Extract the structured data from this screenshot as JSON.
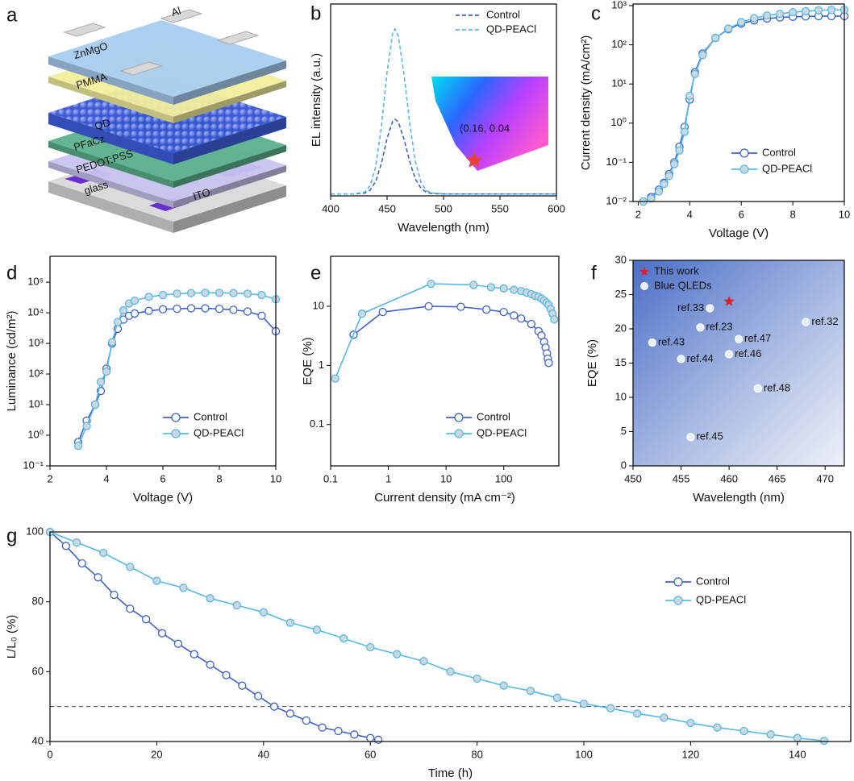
{
  "chart_data": [
    {
      "type": "diagram",
      "panel": "a",
      "layers": [
        "Al",
        "ZnMgO",
        "PMMA",
        "QD",
        "PFaCz",
        "PEDOT:PSS",
        "glass",
        "ITO"
      ]
    },
    {
      "type": "line",
      "panel": "b",
      "xlabel": "Wavelength (nm)",
      "ylabel": "EL intensity (a.u.)",
      "xlim": [
        400,
        600
      ],
      "xticks": [
        400,
        450,
        500,
        550,
        600
      ],
      "ylim": [
        0,
        1
      ],
      "line_style": "dashed",
      "legend": "upper right",
      "annotation": "(0.16, 0.04",
      "series": [
        {
          "name": "Control",
          "color": "#3d63c9",
          "x": [
            400,
            410,
            420,
            430,
            435,
            440,
            445,
            450,
            455,
            457,
            460,
            465,
            470,
            475,
            480,
            485,
            490,
            500,
            520,
            540,
            560,
            580,
            600
          ],
          "values": [
            0.01,
            0.01,
            0.01,
            0.014,
            0.03,
            0.076,
            0.17,
            0.3,
            0.39,
            0.4,
            0.385,
            0.295,
            0.18,
            0.088,
            0.04,
            0.018,
            0.012,
            0.01,
            0.01,
            0.01,
            0.01,
            0.01,
            0.01
          ]
        },
        {
          "name": "QD-PEACl",
          "color": "#56b9ea",
          "x": [
            400,
            410,
            420,
            430,
            435,
            440,
            445,
            450,
            455,
            457,
            460,
            465,
            470,
            475,
            480,
            485,
            490,
            500,
            520,
            540,
            560,
            580,
            600
          ],
          "values": [
            0.01,
            0.01,
            0.01,
            0.019,
            0.053,
            0.154,
            0.363,
            0.646,
            0.849,
            0.87,
            0.832,
            0.634,
            0.38,
            0.18,
            0.071,
            0.027,
            0.015,
            0.01,
            0.01,
            0.01,
            0.01,
            0.01,
            0.01
          ]
        }
      ]
    },
    {
      "type": "line",
      "panel": "c",
      "xlabel": "Voltage (V)",
      "ylabel": "Current density (mA/cm²)",
      "xlim": [
        1.8,
        10
      ],
      "xticks": [
        2,
        4,
        6,
        8,
        10
      ],
      "yscale": "log",
      "ylim": [
        0.01,
        1100
      ],
      "yticks": [
        {
          "value": 0.01,
          "label": "10⁻²"
        },
        {
          "value": 0.1,
          "label": "10⁻¹"
        },
        {
          "value": 1,
          "label": "10⁰"
        },
        {
          "value": 10,
          "label": "10¹"
        },
        {
          "value": 100,
          "label": "10²"
        },
        {
          "value": 1000,
          "label": "10³"
        }
      ],
      "legend": "lower right",
      "series": [
        {
          "name": "Control",
          "color": "#3d63c9",
          "marker": "circle",
          "marker_fill": "#ffffff",
          "x": [
            2.2,
            2.5,
            2.8,
            3.0,
            3.2,
            3.4,
            3.6,
            3.8,
            4.0,
            4.2,
            4.5,
            5,
            5.5,
            6,
            6.5,
            7,
            7.5,
            8,
            8.5,
            9,
            9.5,
            10
          ],
          "values": [
            0.01,
            0.013,
            0.02,
            0.03,
            0.05,
            0.1,
            0.25,
            0.8,
            4,
            20,
            60,
            150,
            250,
            350,
            420,
            470,
            500,
            520,
            530,
            540,
            540,
            540
          ]
        },
        {
          "name": "QD-PEACl",
          "color": "#56b9ea",
          "marker": "circle",
          "marker_fill": "#cbd8e0",
          "x": [
            2.2,
            2.5,
            2.8,
            3.0,
            3.2,
            3.4,
            3.6,
            3.8,
            4.0,
            4.2,
            4.5,
            5,
            5.5,
            6,
            6.5,
            7,
            7.5,
            8,
            8.5,
            9,
            9.5,
            10
          ],
          "values": [
            0.01,
            0.012,
            0.018,
            0.028,
            0.045,
            0.09,
            0.2,
            0.6,
            5,
            18,
            55,
            150,
            260,
            380,
            480,
            560,
            620,
            680,
            720,
            760,
            780,
            780
          ]
        }
      ]
    },
    {
      "type": "line",
      "panel": "d",
      "xlabel": "Voltage (V)",
      "ylabel": "Luminance (cd/m²)",
      "xlim": [
        2,
        10
      ],
      "xticks": [
        2,
        4,
        6,
        8,
        10
      ],
      "yscale": "log",
      "ylim": [
        0.1,
        700000
      ],
      "yticks": [
        {
          "value": 0.1,
          "label": "10⁻¹"
        },
        {
          "value": 1,
          "label": "10⁰"
        },
        {
          "value": 10,
          "label": "10¹"
        },
        {
          "value": 100,
          "label": "10²"
        },
        {
          "value": 1000,
          "label": "10³"
        },
        {
          "value": 10000,
          "label": "10⁴"
        },
        {
          "value": 100000,
          "label": "10⁵"
        }
      ],
      "legend": "lower right",
      "series": [
        {
          "name": "Control",
          "color": "#3d63c9",
          "marker": "circle",
          "marker_fill": "#ffffff",
          "x": [
            3.0,
            3.3,
            3.6,
            3.8,
            4.0,
            4.2,
            4.4,
            4.6,
            4.8,
            5.0,
            5.5,
            6,
            6.5,
            7,
            7.5,
            8,
            8.5,
            9,
            9.5,
            10
          ],
          "values": [
            0.6,
            3,
            10,
            28,
            150,
            1000,
            3000,
            6000,
            8000,
            9500,
            11500,
            13000,
            13500,
            14000,
            14000,
            13500,
            12500,
            11000,
            8000,
            2500
          ]
        },
        {
          "name": "QD-PEACl",
          "color": "#56b9ea",
          "marker": "circle",
          "marker_fill": "#cbd8e0",
          "x": [
            3.0,
            3.3,
            3.6,
            3.8,
            4.0,
            4.2,
            4.4,
            4.6,
            4.8,
            5.0,
            5.5,
            6,
            6.5,
            7,
            7.5,
            8,
            8.5,
            9,
            9.5,
            10
          ],
          "values": [
            0.45,
            2,
            10,
            55,
            120,
            1100,
            5000,
            12000,
            20000,
            25000,
            33000,
            38000,
            42000,
            44000,
            45000,
            45000,
            44000,
            42000,
            38000,
            28000
          ]
        }
      ]
    },
    {
      "type": "line",
      "panel": "e",
      "xlabel": "Current density (mA cm⁻²)",
      "ylabel": "EQE (%)",
      "xscale": "log",
      "xlim": [
        0.1,
        900
      ],
      "xticks": [
        0.1,
        1,
        10,
        100
      ],
      "yscale": "log",
      "ylim": [
        0.02,
        70
      ],
      "yticks": [
        0.1,
        1,
        10
      ],
      "legend": "lower right",
      "series": [
        {
          "name": "Control",
          "color": "#3d63c9",
          "marker": "circle",
          "marker_fill": "#ffffff",
          "x": [
            0.25,
            0.8,
            5,
            18,
            50,
            100,
            150,
            200,
            300,
            400,
            450,
            500,
            530,
            560,
            580,
            600
          ],
          "values": [
            3.3,
            8,
            10,
            9.8,
            8.8,
            8,
            7,
            6.2,
            5,
            3.8,
            3.2,
            2.5,
            2,
            1.6,
            1.3,
            1.1
          ]
        },
        {
          "name": "QD-PEACl",
          "color": "#56b9ea",
          "marker": "circle",
          "marker_fill": "#cbd8e0",
          "x": [
            0.12,
            0.35,
            5.5,
            30,
            60,
            100,
            150,
            200,
            250,
            300,
            350,
            400,
            450,
            500,
            550,
            600,
            650,
            700,
            750
          ],
          "values": [
            0.6,
            7.5,
            24,
            23,
            21,
            20,
            19,
            18,
            17,
            16,
            15,
            14.5,
            13.5,
            12.5,
            11.5,
            10.5,
            9,
            7.5,
            6
          ]
        }
      ]
    },
    {
      "type": "scatter",
      "panel": "f",
      "xlabel": "Wavelength (nm)",
      "ylabel": "EQE (%)",
      "xlim": [
        450,
        472
      ],
      "xticks": [
        450,
        455,
        460,
        465,
        470
      ],
      "ylim": [
        0,
        30
      ],
      "yticks": [
        0,
        5,
        10,
        15,
        20,
        25,
        30
      ],
      "legend": "upper left",
      "series": [
        {
          "name": "This work",
          "color": "#e0202a",
          "marker": "star",
          "x": [
            460
          ],
          "values": [
            24
          ]
        },
        {
          "name": "Blue QLEDs",
          "color": "#ffffff",
          "marker": "circle",
          "marker_fill": "#e8f0fb",
          "x": [
            458,
            457,
            461,
            468,
            452,
            460,
            455,
            463,
            456
          ],
          "values": [
            23,
            20.2,
            18.5,
            21,
            18,
            16.3,
            15.6,
            11.3,
            4.2
          ],
          "labels": [
            "ref.33",
            "ref.23",
            "ref.47",
            "ref.32",
            "ref.43",
            "ref.46",
            "ref.44",
            "ref.48",
            "ref.45"
          ]
        }
      ]
    },
    {
      "type": "line",
      "panel": "g",
      "xlabel": "Time (h)",
      "ylabel": "L/L₀ (%)",
      "xlim": [
        0,
        150
      ],
      "xticks": [
        0,
        20,
        40,
        60,
        80,
        100,
        120,
        140
      ],
      "ylim": [
        40,
        100
      ],
      "yticks": [
        40,
        60,
        80,
        100
      ],
      "hline": 50,
      "legend": "center right",
      "series": [
        {
          "name": "Control",
          "color": "#3d63c9",
          "marker": "circle",
          "marker_fill": "#ffffff",
          "x": [
            0,
            3,
            6,
            9,
            12,
            15,
            18,
            21,
            24,
            27,
            30,
            33,
            36,
            39,
            42,
            45,
            48,
            51,
            54,
            57,
            60,
            61.5
          ],
          "values": [
            100,
            96,
            91,
            87,
            82,
            78,
            75,
            71,
            68,
            65,
            62,
            59,
            56,
            53,
            50,
            48,
            46,
            44,
            43,
            42,
            41,
            40.5
          ]
        },
        {
          "name": "QD-PEACl",
          "color": "#56b9ea",
          "marker": "circle",
          "marker_fill": "#cbd8e0",
          "x": [
            0,
            5,
            10,
            15,
            20,
            25,
            30,
            35,
            40,
            45,
            50,
            55,
            60,
            65,
            70,
            75,
            80,
            85,
            90,
            95,
            100,
            105,
            110,
            115,
            120,
            125,
            130,
            135,
            140,
            145
          ],
          "values": [
            100,
            97,
            94,
            90,
            86,
            84,
            81,
            79,
            77,
            74,
            72,
            69.5,
            67,
            65,
            63,
            60,
            58,
            56,
            54.5,
            52.5,
            50.8,
            49.5,
            48,
            46.8,
            45.3,
            44,
            43,
            42,
            41,
            40.2
          ]
        }
      ]
    }
  ]
}
